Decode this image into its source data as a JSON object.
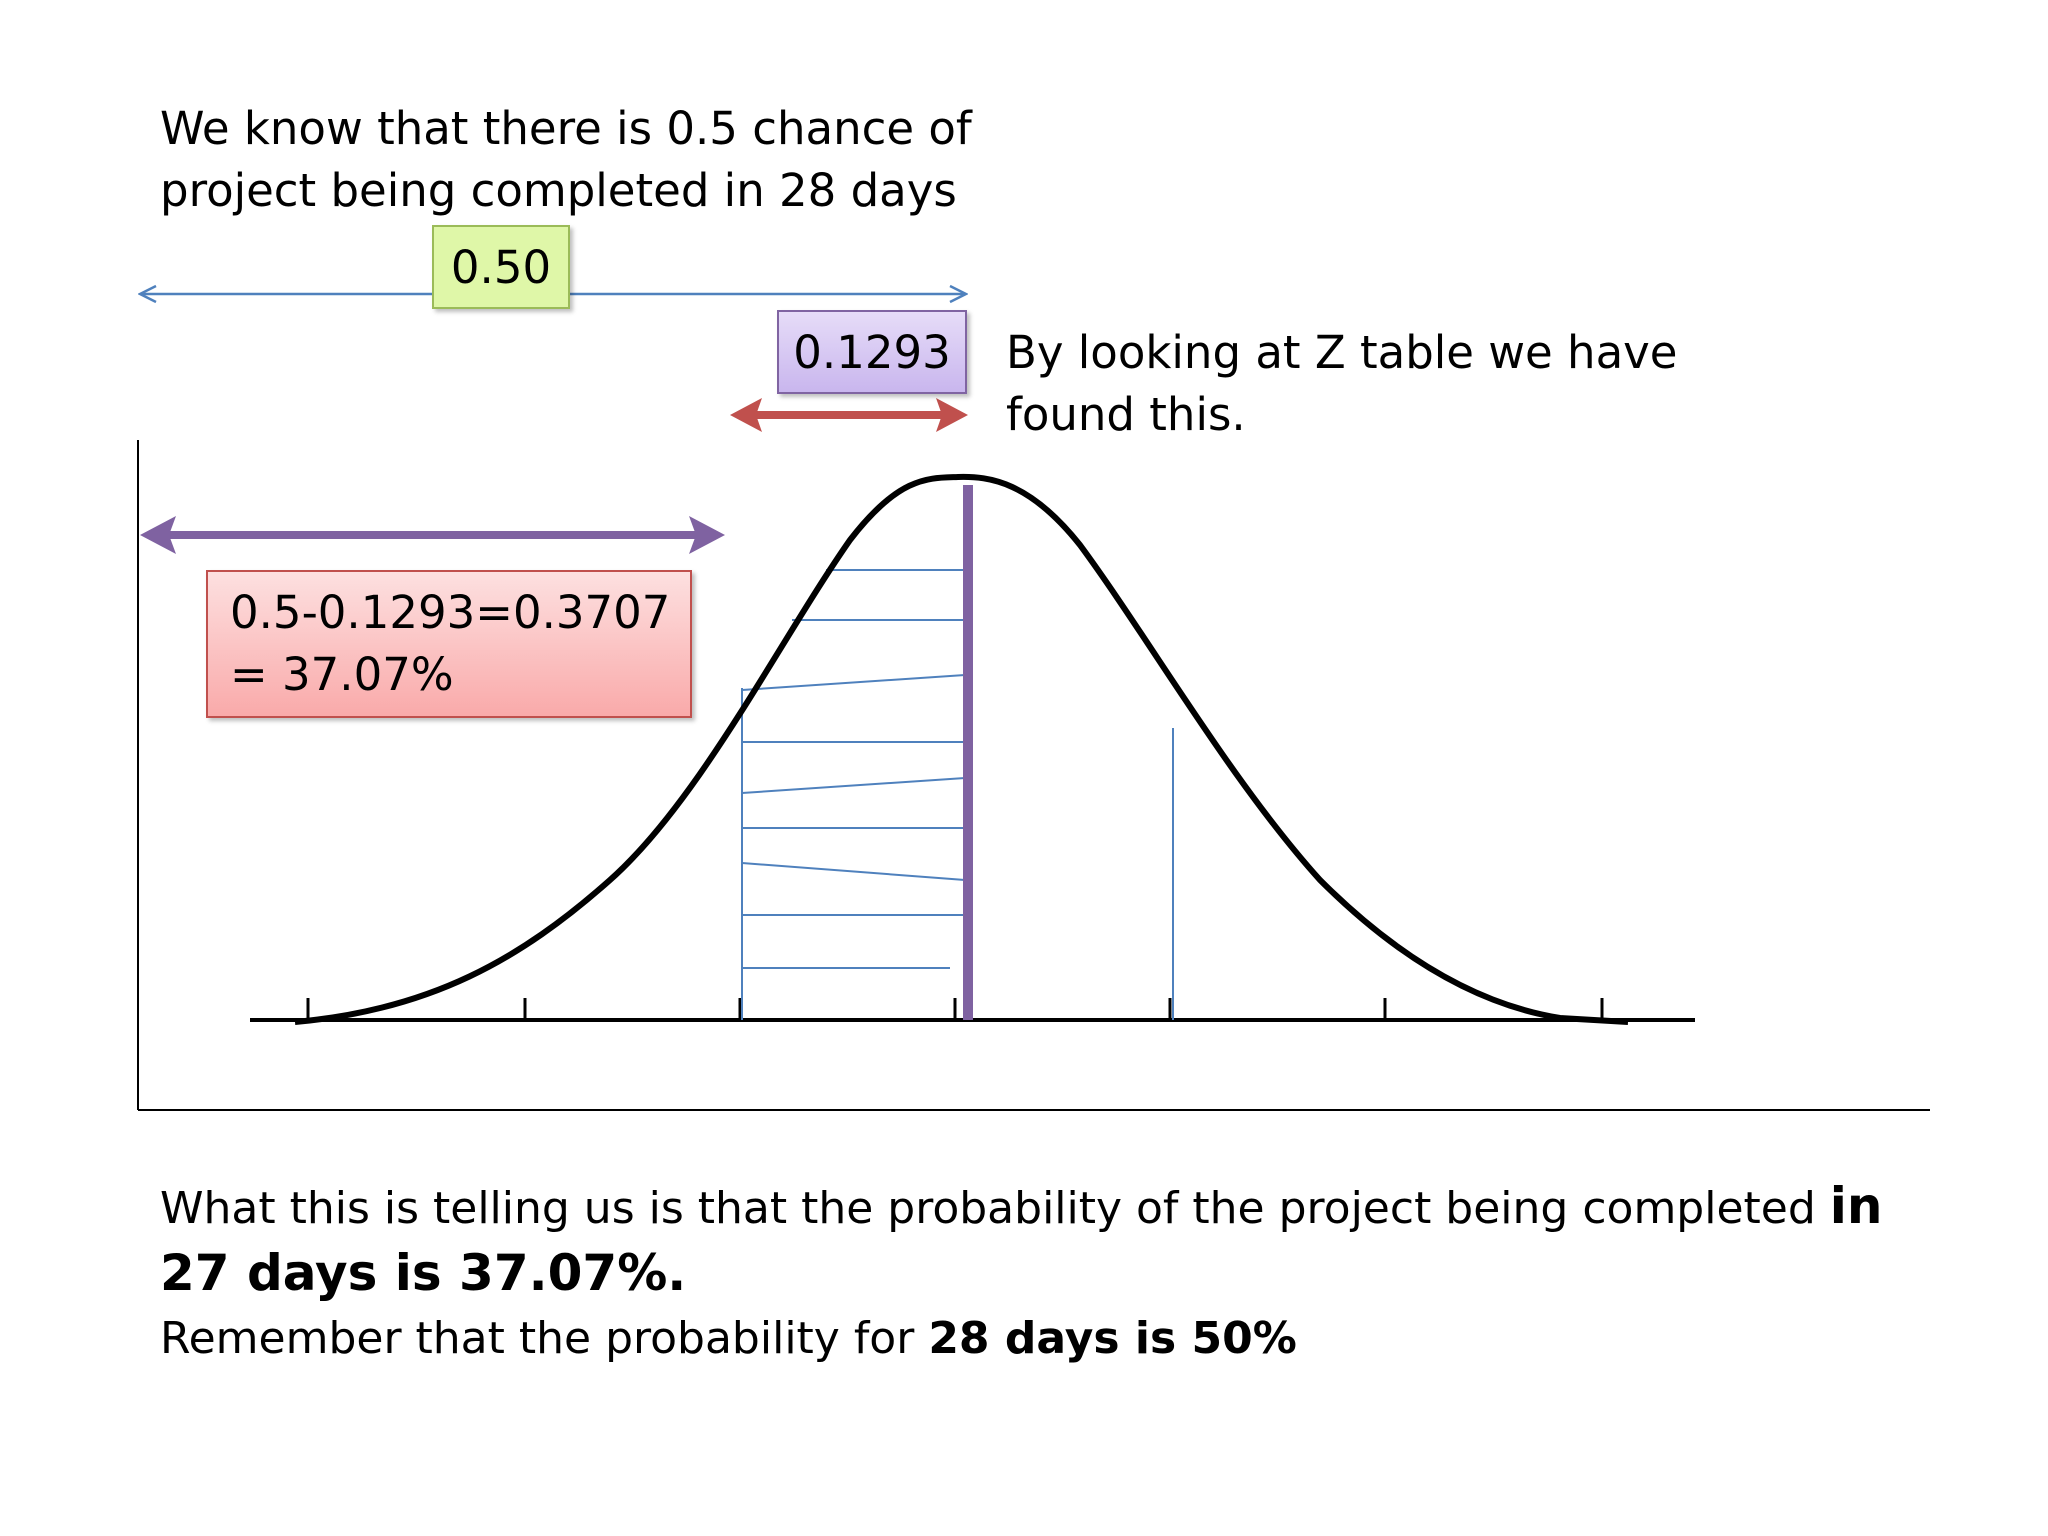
{
  "intro": {
    "line1": "We know that there is 0.5 chance of",
    "line2": "project being completed in 28 days"
  },
  "half_label": "0.50",
  "z_value_label": "0.1293",
  "z_note": {
    "line1": "By looking at Z table we have",
    "line2": "found this."
  },
  "calc": {
    "line1": "0.5-0.1293=0.3707",
    "line2": "= 37.07%"
  },
  "conclusion": {
    "line1_normal": "What this is telling us is that the probability of the project being completed ",
    "line1_bold": "in",
    "line2_bold": "27 days is 37.07%.",
    "line3_normal": "Remember that the probability for ",
    "line3_bold": "28 days is 50%"
  },
  "colors": {
    "half_box_fill": "#dff7a8",
    "half_box_border": "#9bbb59",
    "z_box_fill": "#d4c4f2",
    "z_box_border": "#8064a2",
    "calc_box_fill": "#fcc4c4",
    "calc_box_border": "#c0504d",
    "red_arrow": "#c0504d",
    "purple_arrow": "#7f62a1",
    "blue_lines": "#4f81bd",
    "curve": "#000000"
  }
}
